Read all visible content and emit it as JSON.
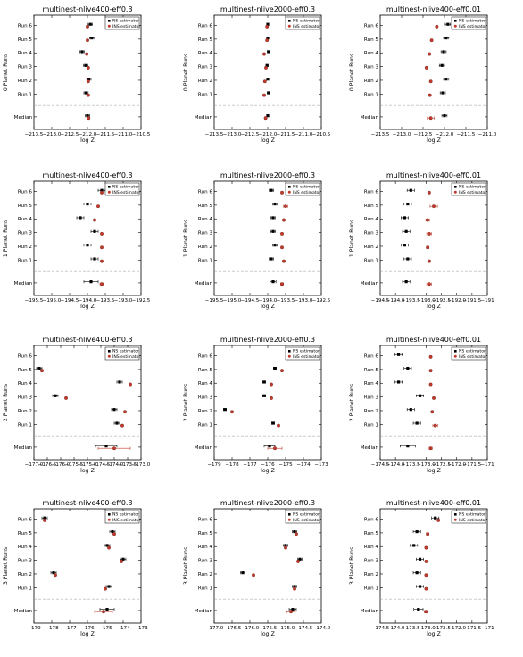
{
  "figure": {
    "row_labels": [
      "Run 6",
      "Run 5",
      "Run 4",
      "Run 3",
      "Run 2",
      "Run 1",
      "Median"
    ],
    "legend": [
      "NS estimator",
      "INS estimator"
    ],
    "colors": {
      "ns": "#000000",
      "ins": "#c0392b",
      "divider": "#999999"
    }
  },
  "chart_data": [
    {
      "type": "scatter",
      "title": "multinest-nlive400-eff0.3",
      "ylabel": "0 Planet Runs",
      "xlabel": "log Z",
      "xlim": [
        -213.5,
        -210.5
      ],
      "xticks": [
        -213.5,
        -213.0,
        -212.5,
        -212.0,
        -211.5,
        -211.0,
        -210.5
      ],
      "xticklabels": [
        "−213.5",
        "−213.0",
        "−212.5",
        "−212.0",
        "−211.5",
        "−211.0",
        "−210.5"
      ],
      "series": [
        {
          "name": "NS estimator",
          "values": [
            -211.92,
            -211.88,
            -212.15,
            -212.05,
            -211.96,
            -212.04,
            -212.0
          ],
          "err": [
            0.06,
            0.06,
            0.06,
            0.06,
            0.06,
            0.06,
            0.06
          ]
        },
        {
          "name": "INS estimator",
          "values": [
            -212.0,
            -212.0,
            -212.02,
            -211.98,
            -211.98,
            -211.98,
            -211.97
          ],
          "err": [
            0.02,
            0.02,
            0.02,
            0.02,
            0.02,
            0.02,
            0.03
          ]
        }
      ]
    },
    {
      "type": "scatter",
      "title": "multinest-nlive2000-eff0.3",
      "ylabel": "0 Planet Runs",
      "xlabel": "log Z",
      "xlim": [
        -213.5,
        -210.5
      ],
      "xticks": [
        -213.5,
        -213.0,
        -212.5,
        -212.0,
        -211.5,
        -211.0,
        -210.5
      ],
      "xticklabels": [
        "−213.5",
        "−213.0",
        "−212.5",
        "−212.0",
        "−211.5",
        "−211.0",
        "−210.5"
      ],
      "series": [
        {
          "name": "NS estimator",
          "values": [
            -212.0,
            -212.0,
            -211.98,
            -212.02,
            -212.0,
            -211.98,
            -212.0
          ],
          "err": [
            0.03,
            0.03,
            0.03,
            0.03,
            0.03,
            0.03,
            0.03
          ]
        },
        {
          "name": "INS estimator",
          "values": [
            -212.02,
            -212.02,
            -212.1,
            -212.05,
            -212.08,
            -212.1,
            -212.06
          ],
          "err": [
            0.02,
            0.02,
            0.02,
            0.02,
            0.02,
            0.02,
            0.03
          ]
        }
      ]
    },
    {
      "type": "scatter",
      "title": "multinest-nlive400-eff0.01",
      "ylabel": "0 Planet Runs",
      "xlabel": "log Z",
      "xlim": [
        -213.5,
        -211.0
      ],
      "xticks": [
        -213.5,
        -213.0,
        -212.5,
        -212.0,
        -211.5,
        -211.0
      ],
      "xticklabels": [
        "−213.5",
        "−213.0",
        "−212.5",
        "−212.0",
        "−211.5",
        "−211.0"
      ],
      "series": [
        {
          "name": "NS estimator",
          "values": [
            -211.92,
            -211.96,
            -212.02,
            -212.06,
            -211.96,
            -212.04,
            -212.0
          ],
          "err": [
            0.06,
            0.06,
            0.06,
            0.06,
            0.06,
            0.06,
            0.06
          ]
        },
        {
          "name": "INS estimator",
          "values": [
            -212.18,
            -212.3,
            -212.35,
            -212.42,
            -212.32,
            -212.34,
            -212.32
          ],
          "err": [
            0.02,
            0.02,
            0.02,
            0.02,
            0.02,
            0.02,
            0.08
          ]
        }
      ]
    },
    {
      "type": "scatter",
      "title": "multinest-nlive400-eff0.3",
      "ylabel": "1 Planet Runs",
      "xlabel": "log Z",
      "xlim": [
        -195.5,
        -192.5
      ],
      "xticks": [
        -195.5,
        -195.0,
        -194.5,
        -194.0,
        -193.5,
        -193.0,
        -192.5
      ],
      "xticklabels": [
        "−195.5",
        "−195.0",
        "−194.5",
        "−194.0",
        "−193.5",
        "−193.0",
        "−192.5"
      ],
      "series": [
        {
          "name": "NS estimator",
          "values": [
            -193.6,
            -194.0,
            -194.2,
            -193.8,
            -194.0,
            -193.8,
            -193.9
          ],
          "err": [
            0.1,
            0.1,
            0.1,
            0.1,
            0.1,
            0.1,
            0.2
          ]
        },
        {
          "name": "INS estimator",
          "values": [
            -193.6,
            -193.7,
            -193.8,
            -193.6,
            -193.6,
            -193.6,
            -193.6
          ],
          "err": [
            0.02,
            0.02,
            0.02,
            0.02,
            0.02,
            0.02,
            0.05
          ]
        }
      ]
    },
    {
      "type": "scatter",
      "title": "multinest-nlive2000-eff0.3",
      "ylabel": "1 Planet Runs",
      "xlabel": "log Z",
      "xlim": [
        -195.5,
        -192.5
      ],
      "xticks": [
        -195.5,
        -195.0,
        -194.5,
        -194.0,
        -193.5,
        -193.0,
        -192.5
      ],
      "xticklabels": [
        "−195.5",
        "−195.0",
        "−194.5",
        "−194.0",
        "−193.5",
        "−193.0",
        "−192.5"
      ],
      "series": [
        {
          "name": "NS estimator",
          "values": [
            -193.9,
            -193.8,
            -193.85,
            -193.85,
            -193.8,
            -193.9,
            -193.85
          ],
          "err": [
            0.06,
            0.06,
            0.06,
            0.06,
            0.06,
            0.06,
            0.08
          ]
        },
        {
          "name": "INS estimator",
          "values": [
            -193.6,
            -193.5,
            -193.55,
            -193.6,
            -193.6,
            -193.55,
            -193.6
          ],
          "err": [
            0.03,
            0.06,
            0.03,
            0.03,
            0.03,
            0.03,
            0.04
          ]
        }
      ]
    },
    {
      "type": "scatter",
      "title": "multinest-nlive400-eff0.01",
      "ylabel": "1 Planet Runs",
      "xlabel": "log Z",
      "xlim": [
        -194.5,
        -191.0
      ],
      "xticks": [
        -194.5,
        -194.0,
        -193.5,
        -193.0,
        -192.5,
        -192.0,
        -191.5,
        -191.0
      ],
      "xticklabels": [
        "−194.5",
        "−194.0",
        "−193.5",
        "−193.0",
        "−192.5",
        "−192.0",
        "−191.5",
        "−191"
      ],
      "series": [
        {
          "name": "NS estimator",
          "values": [
            -193.5,
            -193.6,
            -193.7,
            -193.65,
            -193.7,
            -193.6,
            -193.65
          ],
          "err": [
            0.12,
            0.12,
            0.12,
            0.12,
            0.12,
            0.12,
            0.12
          ]
        },
        {
          "name": "INS estimator",
          "values": [
            -192.9,
            -192.75,
            -192.95,
            -192.9,
            -192.95,
            -192.9,
            -192.9
          ],
          "err": [
            0.03,
            0.12,
            0.06,
            0.08,
            0.04,
            0.04,
            0.08
          ]
        }
      ]
    },
    {
      "type": "scatter",
      "title": "multinest-nlive400-eff0.3",
      "ylabel": "2 Planet Runs",
      "xlabel": "log Z",
      "xlim": [
        -177.0,
        -173.0
      ],
      "xticks": [
        -177.0,
        -176.5,
        -176.0,
        -175.5,
        -175.0,
        -174.5,
        -174.0,
        -173.5,
        -173.0
      ],
      "xticklabels": [
        "−177.0",
        "−176.5",
        "−176.0",
        "−175.5",
        "−175.0",
        "−174.5",
        "−174.0",
        "−173.5",
        "−173.0"
      ],
      "series": [
        {
          "name": "NS estimator",
          "values": [
            -174.0,
            -176.8,
            -173.8,
            -176.2,
            -174.0,
            -173.9,
            -174.3
          ],
          "err": [
            0.1,
            0.1,
            0.1,
            0.1,
            0.1,
            0.1,
            0.4
          ]
        },
        {
          "name": "INS estimator",
          "values": [
            -173.8,
            -176.7,
            -173.4,
            -175.8,
            -173.6,
            -173.7,
            -174.0
          ],
          "err": [
            0.03,
            0.03,
            0.03,
            0.03,
            0.03,
            0.03,
            0.6
          ]
        }
      ]
    },
    {
      "type": "scatter",
      "title": "multinest-nlive2000-eff0.3",
      "ylabel": "2 Planet Runs",
      "xlabel": "log Z",
      "xlim": [
        -179.0,
        -173.0
      ],
      "xticks": [
        -179,
        -178,
        -177,
        -176,
        -175,
        -174,
        -173
      ],
      "xticklabels": [
        "−179",
        "−178",
        "−177",
        "−176",
        "−175",
        "−174",
        "−173"
      ],
      "series": [
        {
          "name": "NS estimator",
          "values": [
            -174.4,
            -175.6,
            -176.2,
            -176.2,
            -178.4,
            -175.7,
            -175.9
          ],
          "err": [
            0.08,
            0.08,
            0.08,
            0.08,
            0.08,
            0.08,
            0.3
          ]
        },
        {
          "name": "INS estimator",
          "values": [
            -173.9,
            -175.2,
            -175.8,
            -175.8,
            -178.0,
            -175.4,
            -175.6
          ],
          "err": [
            0.03,
            0.03,
            0.03,
            0.03,
            0.03,
            0.03,
            0.4
          ]
        }
      ]
    },
    {
      "type": "scatter",
      "title": "multinest-nlive400-eff0.01",
      "ylabel": "2 Planet Runs",
      "xlabel": "log Z",
      "xlim": [
        -174.5,
        -171.0
      ],
      "xticks": [
        -174.5,
        -174.0,
        -173.5,
        -173.0,
        -172.5,
        -172.0,
        -171.5,
        -171.0
      ],
      "xticklabels": [
        "−174.5",
        "−174.0",
        "−173.5",
        "−173.0",
        "−172.5",
        "−172.0",
        "−171.5",
        "−171"
      ],
      "series": [
        {
          "name": "NS estimator",
          "values": [
            -173.9,
            -173.6,
            -173.9,
            -173.2,
            -173.5,
            -173.3,
            -173.6
          ],
          "err": [
            0.12,
            0.12,
            0.12,
            0.12,
            0.12,
            0.12,
            0.25
          ]
        },
        {
          "name": "INS estimator",
          "values": [
            -172.85,
            -172.85,
            -172.85,
            -172.75,
            -172.8,
            -172.7,
            -172.85
          ],
          "err": [
            0.03,
            0.03,
            0.03,
            0.03,
            0.03,
            0.08,
            0.05
          ]
        }
      ]
    },
    {
      "type": "scatter",
      "title": "multinest-nlive400-eff0.3",
      "ylabel": "3 Planet Runs",
      "xlabel": "log Z",
      "xlim": [
        -179.0,
        -173.0
      ],
      "xticks": [
        -179,
        -178,
        -177,
        -176,
        -175,
        -174,
        -173
      ],
      "xticklabels": [
        "−179",
        "−178",
        "−177",
        "−176",
        "−175",
        "−174",
        "−173"
      ],
      "series": [
        {
          "name": "NS estimator",
          "values": [
            -178.4,
            -174.6,
            -174.9,
            -174.0,
            -177.9,
            -174.8,
            -174.9
          ],
          "err": [
            0.15,
            0.15,
            0.15,
            0.15,
            0.15,
            0.15,
            0.4
          ]
        },
        {
          "name": "INS estimator",
          "values": [
            -178.4,
            -174.5,
            -174.8,
            -174.1,
            -177.8,
            -175.0,
            -175.1
          ],
          "err": [
            0.03,
            0.03,
            0.03,
            0.03,
            0.03,
            0.03,
            0.5
          ]
        }
      ]
    },
    {
      "type": "scatter",
      "title": "multinest-nlive2000-eff0.3",
      "ylabel": "3 Planet Runs",
      "xlabel": "log Z",
      "xlim": [
        -177.0,
        -174.0
      ],
      "xticks": [
        -177.0,
        -176.5,
        -176.0,
        -175.5,
        -175.0,
        -174.5,
        -174.0
      ],
      "xticklabels": [
        "−177.0",
        "−176.5",
        "−176.0",
        "−175.5",
        "−175.0",
        "−174.5",
        "−174.0"
      ],
      "series": [
        {
          "name": "NS estimator",
          "values": [
            -174.9,
            -174.75,
            -175.0,
            -174.6,
            -176.2,
            -174.75,
            -174.8
          ],
          "err": [
            0.06,
            0.06,
            0.06,
            0.06,
            0.06,
            0.06,
            0.1
          ]
        },
        {
          "name": "INS estimator",
          "values": [
            -174.95,
            -174.7,
            -175.0,
            -174.65,
            -175.9,
            -174.75,
            -174.85
          ],
          "err": [
            0.02,
            0.02,
            0.02,
            0.02,
            0.02,
            0.02,
            0.12
          ]
        }
      ]
    },
    {
      "type": "scatter",
      "title": "multinest-nlive400-eff0.01",
      "ylabel": "3 Planet Runs",
      "xlabel": "log Z",
      "xlim": [
        -174.5,
        -171.0
      ],
      "xticks": [
        -174.5,
        -174.0,
        -173.5,
        -173.0,
        -172.5,
        -172.0,
        -171.5,
        -171.0
      ],
      "xticklabels": [
        "−174.5",
        "−174.0",
        "−173.5",
        "−173.0",
        "−172.5",
        "−172.0",
        "−171.5",
        "−171"
      ],
      "series": [
        {
          "name": "NS estimator",
          "values": [
            -172.7,
            -173.3,
            -173.4,
            -173.2,
            -173.3,
            -173.2,
            -173.25
          ],
          "err": [
            0.12,
            0.12,
            0.12,
            0.12,
            0.12,
            0.12,
            0.15
          ]
        },
        {
          "name": "INS estimator",
          "values": [
            -172.6,
            -172.95,
            -173.0,
            -173.0,
            -173.0,
            -173.0,
            -173.0
          ],
          "err": [
            0.02,
            0.04,
            0.02,
            0.02,
            0.02,
            0.02,
            0.06
          ]
        }
      ]
    }
  ]
}
